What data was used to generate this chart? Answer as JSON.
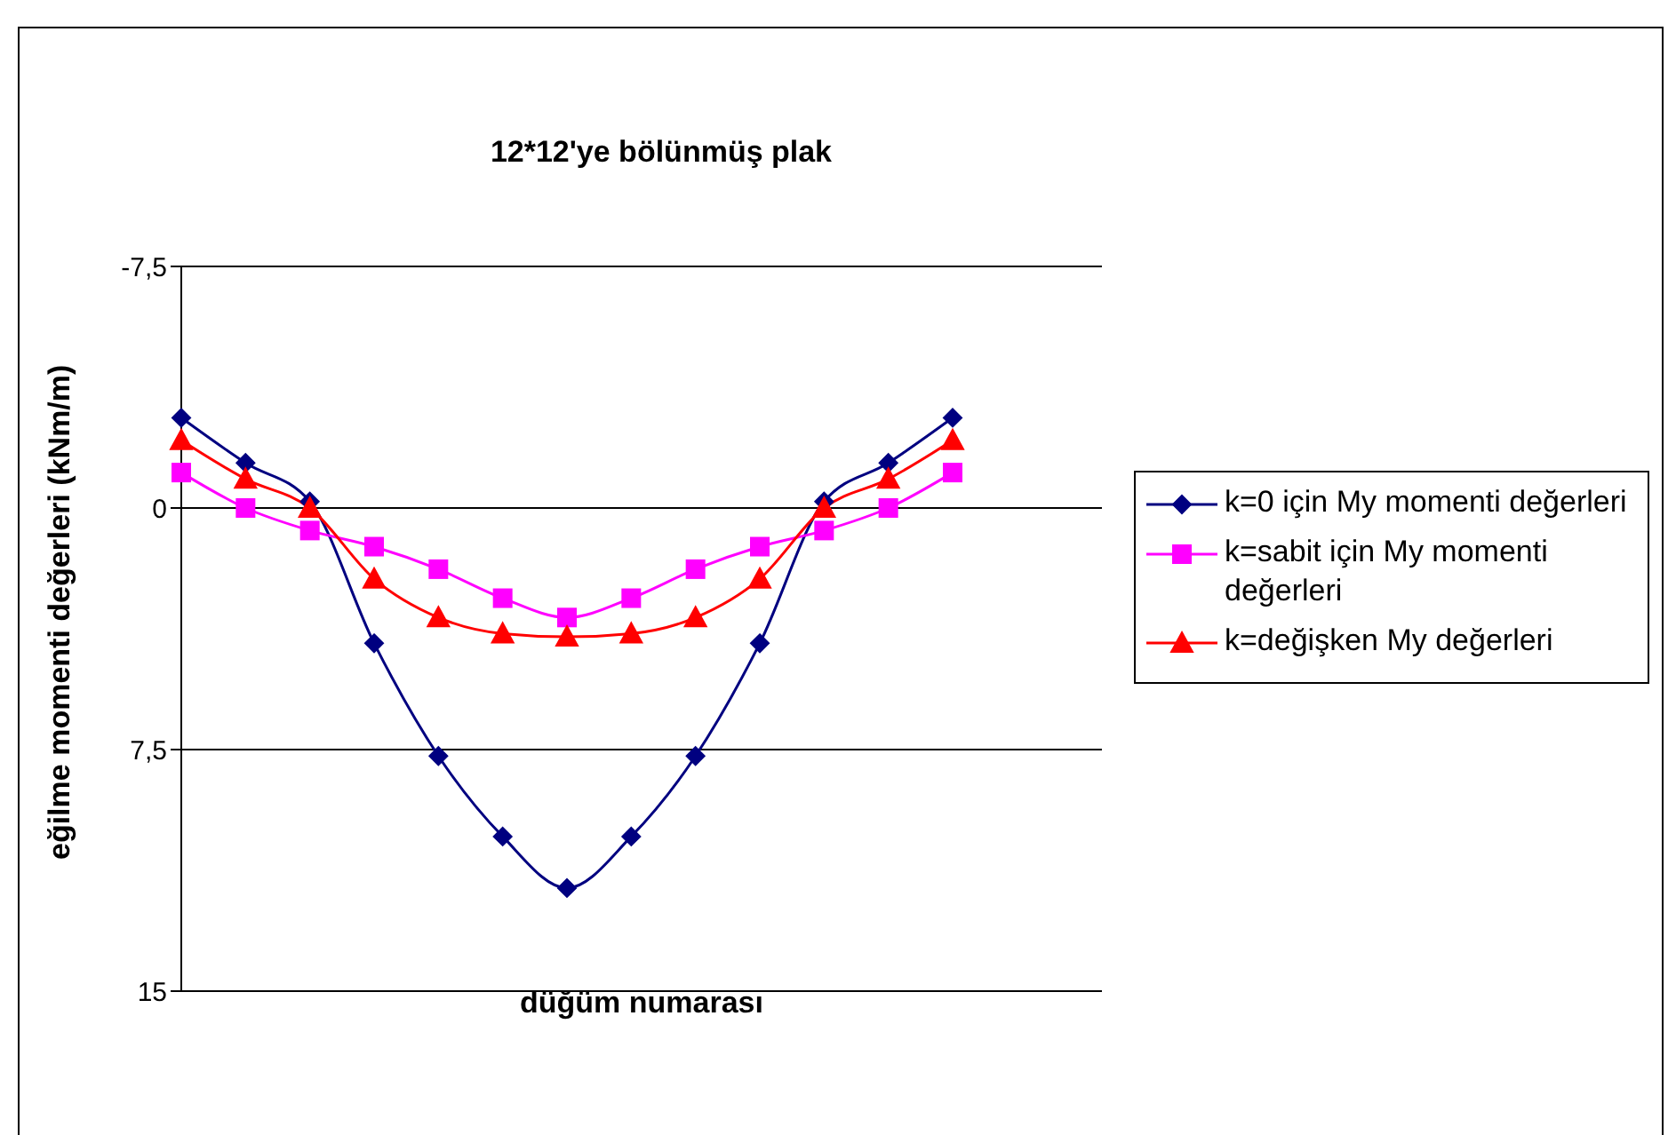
{
  "chart_data": {
    "type": "line",
    "title": "12*12'ye bölünmüş plak",
    "xlabel": "düğüm numarası",
    "ylabel": "eğilme momenti değerleri (kNm/m)",
    "categories": [
      null,
      null,
      null,
      null,
      null,
      null,
      null,
      null,
      null,
      null,
      null,
      null,
      null
    ],
    "series": [
      {
        "name": "k=0 için My momenti değerleri",
        "color": "#000080",
        "marker": "diamond",
        "values": [
          -2.8,
          -1.4,
          -0.2,
          4.2,
          7.7,
          10.2,
          11.8,
          10.2,
          7.7,
          4.2,
          -0.2,
          -1.4,
          -2.8
        ]
      },
      {
        "name": "k=sabit için My momenti değerleri",
        "color": "#ff00ff",
        "marker": "square",
        "values": [
          -1.1,
          0,
          0.7,
          1.2,
          1.9,
          2.8,
          3.4,
          2.8,
          1.9,
          1.2,
          0.7,
          0,
          -1.1
        ]
      },
      {
        "name": "k=değişken My değerleri",
        "color": "#ff0000",
        "marker": "triangle",
        "values": [
          -2.1,
          -0.9,
          0,
          2.2,
          3.4,
          3.9,
          4.0,
          3.9,
          3.4,
          2.2,
          0,
          -0.9,
          -2.1
        ]
      }
    ],
    "ylim": [
      15,
      -7.5
    ],
    "yticks": [
      {
        "value": -7.5,
        "label": "-7,5"
      },
      0,
      {
        "value": 7.5,
        "label": "7,5"
      },
      15
    ],
    "grid": "y",
    "legend": "right",
    "line_style": "solid"
  }
}
